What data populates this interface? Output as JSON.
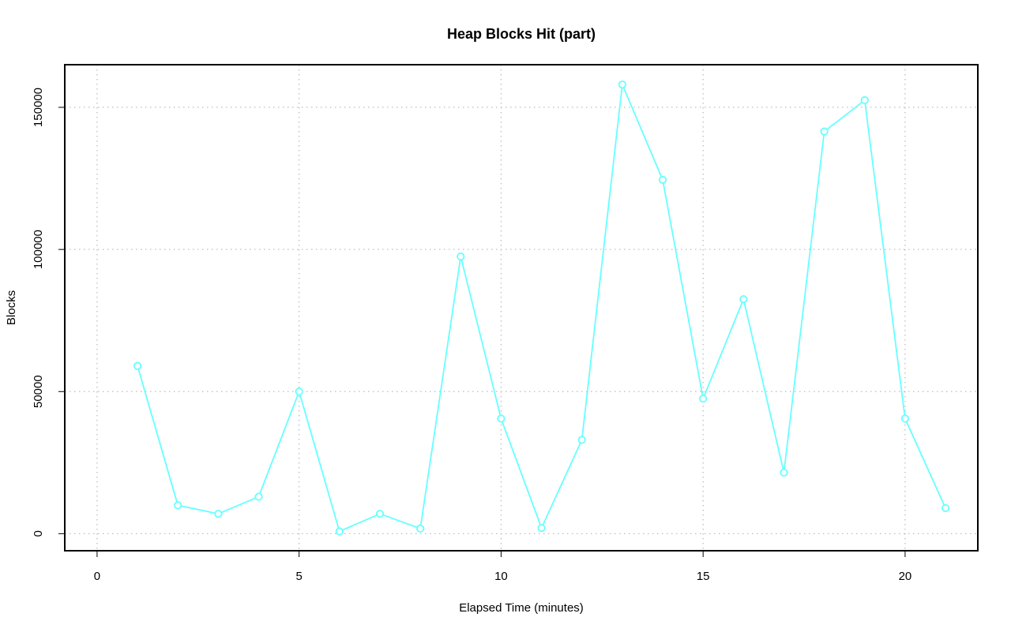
{
  "chart_data": {
    "type": "line",
    "title": "Heap Blocks Hit (part)",
    "xlabel": "Elapsed Time (minutes)",
    "ylabel": "Blocks",
    "xlim": [
      -0.8,
      21.8
    ],
    "ylim": [
      -6000,
      165000
    ],
    "x_ticks": [
      0,
      5,
      10,
      15,
      20
    ],
    "y_ticks": [
      0,
      50000,
      100000,
      150000
    ],
    "grid": true,
    "legend": "none",
    "series_color": "#66ffff",
    "series": [
      {
        "x": [
          1,
          2,
          3,
          4,
          5,
          6,
          7,
          8,
          9,
          10,
          11,
          12,
          13,
          14,
          15,
          16,
          17,
          18,
          19,
          20,
          21
        ],
        "values": [
          59000,
          10000,
          7000,
          13000,
          50000,
          800,
          7000,
          1800,
          97500,
          40500,
          2000,
          33000,
          158000,
          124500,
          47500,
          82500,
          21500,
          141500,
          152500,
          40500,
          9000
        ]
      }
    ]
  }
}
